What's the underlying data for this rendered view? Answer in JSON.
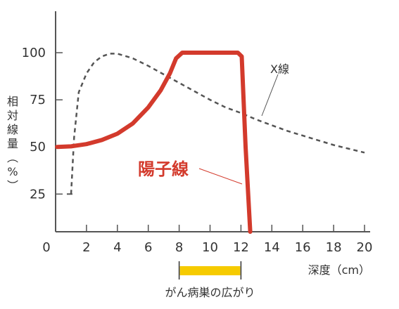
{
  "chart_data": {
    "type": "line",
    "xlabel": "深度（cm）",
    "ylabel": "相対線量（%）",
    "xlim": [
      0,
      20
    ],
    "ylim": [
      5,
      122
    ],
    "xticks": [
      0,
      2,
      4,
      6,
      8,
      10,
      12,
      14,
      16,
      18,
      20
    ],
    "yticks": [
      25,
      50,
      75,
      100
    ],
    "grid": false,
    "series": [
      {
        "name": "X線",
        "style": "dashed",
        "color": "#555555",
        "x": [
          1.0,
          1.2,
          1.5,
          2.0,
          2.5,
          3.0,
          3.5,
          4.0,
          5.0,
          6.0,
          7.0,
          8.0,
          9.0,
          10.0,
          11.0,
          12.0,
          13.0,
          14.0,
          15.0,
          16.0,
          17.0,
          18.0,
          19.0,
          20.0
        ],
        "y": [
          25,
          55,
          79,
          89,
          95,
          98,
          99.5,
          99.5,
          97,
          93,
          88.5,
          84,
          79.5,
          75,
          71,
          68,
          64.5,
          61.5,
          58.5,
          56,
          53.5,
          51,
          49,
          47
        ]
      },
      {
        "name": "陽子線",
        "style": "solid",
        "color": "#d33a2c",
        "x": [
          0.1,
          1.0,
          2.0,
          3.0,
          4.0,
          5.0,
          6.0,
          6.8,
          7.4,
          7.8,
          8.2,
          9.0,
          10.0,
          11.0,
          11.8,
          12.05,
          12.3,
          12.6
        ],
        "y": [
          50,
          50.3,
          51.5,
          53.7,
          57,
          62.5,
          71,
          80,
          89,
          97,
          100,
          100,
          100,
          100,
          100,
          98,
          50,
          5
        ]
      }
    ],
    "annotations": [
      {
        "text": "X線",
        "target_series": "X線",
        "x": 13.5,
        "y": 75
      },
      {
        "text": "陽子線",
        "target_series": "陽子線",
        "x": 12.4,
        "y": 40
      }
    ],
    "range_bar": {
      "label": "がん病巣の広がり",
      "start": 8,
      "end": 12,
      "color": "#f6cb00"
    }
  }
}
